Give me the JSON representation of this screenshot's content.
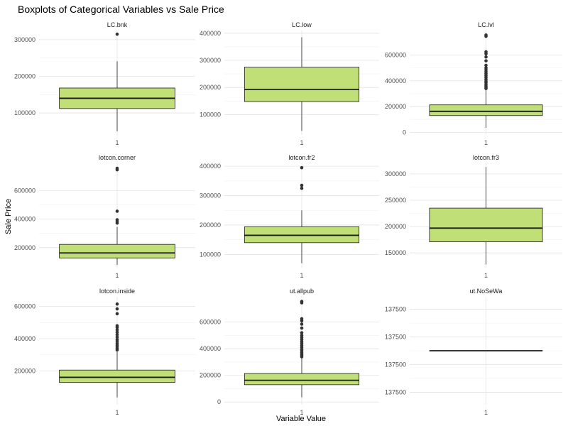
{
  "chart_data": {
    "type": "boxplot",
    "title": "Boxplots of Categorical Variables vs Sale Price",
    "xlabel": "Variable Value",
    "ylabel": "Sale Price",
    "grid": true,
    "box_fill": "#c0df77",
    "box_stroke": "#1a1a1a",
    "panels": [
      {
        "name": "LC.bnk",
        "category": "1",
        "ylim": [
          40000,
          325000
        ],
        "yticks": [
          "100000",
          "200000",
          "300000"
        ],
        "ytick_values": [
          100000,
          200000,
          300000
        ],
        "whisker_low": 50000,
        "q1": 112000,
        "median": 140000,
        "q3": 168000,
        "whisker_high": 241000,
        "outliers": [
          315000
        ]
      },
      {
        "name": "LC.low",
        "category": "1",
        "ylim": [
          25000,
          410000
        ],
        "yticks": [
          "100000",
          "200000",
          "300000",
          "400000"
        ],
        "ytick_values": [
          100000,
          200000,
          300000,
          400000
        ],
        "whisker_low": 40000,
        "q1": 148000,
        "median": 193000,
        "q3": 275000,
        "whisker_high": 385000,
        "outliers": []
      },
      {
        "name": "LC.lvl",
        "category": "1",
        "ylim": [
          -20000,
          790000
        ],
        "yticks": [
          "0",
          "200000",
          "400000",
          "600000"
        ],
        "ytick_values": [
          0,
          200000,
          400000,
          600000
        ],
        "whisker_low": 35000,
        "q1": 130000,
        "median": 163000,
        "q3": 213000,
        "whisker_high": 335000,
        "outliers": [
          340000,
          350000,
          360000,
          372000,
          385000,
          395000,
          410000,
          425000,
          440000,
          455000,
          470000,
          485000,
          500000,
          520000,
          555000,
          585000,
          610000,
          625000,
          745000,
          755000
        ]
      },
      {
        "name": "lotcon.corner",
        "category": "1",
        "ylim": [
          60000,
          790000
        ],
        "yticks": [
          "200000",
          "400000",
          "600000"
        ],
        "ytick_values": [
          200000,
          400000,
          600000
        ],
        "whisker_low": 80000,
        "q1": 128000,
        "median": 163000,
        "q3": 223000,
        "whisker_high": 345000,
        "outliers": [
          372000,
          385000,
          395000,
          455000,
          745000,
          755000
        ]
      },
      {
        "name": "lotcon.fr2",
        "category": "1",
        "ylim": [
          55000,
          410000
        ],
        "yticks": [
          "100000",
          "200000",
          "300000",
          "400000"
        ],
        "ytick_values": [
          100000,
          200000,
          300000,
          400000
        ],
        "whisker_low": 70000,
        "q1": 140000,
        "median": 165000,
        "q3": 194000,
        "whisker_high": 250000,
        "outliers": [
          325000,
          335000,
          395000
        ]
      },
      {
        "name": "lotcon.fr3",
        "category": "1",
        "ylim": [
          122000,
          320000
        ],
        "yticks": [
          "150000",
          "200000",
          "250000",
          "300000"
        ],
        "ytick_values": [
          150000,
          200000,
          250000,
          300000
        ],
        "whisker_low": 128000,
        "q1": 171000,
        "median": 197000,
        "q3": 235000,
        "whisker_high": 313000,
        "outliers": []
      },
      {
        "name": "lotcon.inside",
        "category": "1",
        "ylim": [
          -10000,
          660000
        ],
        "yticks": [
          "200000",
          "400000",
          "600000"
        ],
        "ytick_values": [
          200000,
          400000,
          600000
        ],
        "whisker_low": 35000,
        "q1": 128000,
        "median": 160000,
        "q3": 205000,
        "whisker_high": 320000,
        "outliers": [
          330000,
          340000,
          350000,
          360000,
          372000,
          385000,
          395000,
          410000,
          425000,
          440000,
          455000,
          470000,
          480000,
          555000,
          585000,
          615000
        ]
      },
      {
        "name": "ut.allpub",
        "category": "1",
        "ylim": [
          -20000,
          790000
        ],
        "yticks": [
          "0",
          "200000",
          "400000",
          "600000"
        ],
        "ytick_values": [
          0,
          200000,
          400000,
          600000
        ],
        "whisker_low": 35000,
        "q1": 130000,
        "median": 163000,
        "q3": 214000,
        "whisker_high": 335000,
        "outliers": [
          340000,
          350000,
          360000,
          372000,
          385000,
          395000,
          410000,
          425000,
          440000,
          455000,
          470000,
          485000,
          500000,
          520000,
          555000,
          585000,
          610000,
          625000,
          745000,
          755000
        ]
      },
      {
        "name": "ut.NoSeWa",
        "category": "1",
        "ylim": [
          -1.3,
          1.3
        ],
        "yticks": [
          "137500",
          "137500",
          "137500",
          "137500"
        ],
        "ytick_values": [
          -1,
          -0.33,
          0.33,
          1
        ],
        "whisker_low": 0,
        "q1": 0,
        "median": 0,
        "q3": 0,
        "whisker_high": 0,
        "outliers": []
      }
    ]
  }
}
